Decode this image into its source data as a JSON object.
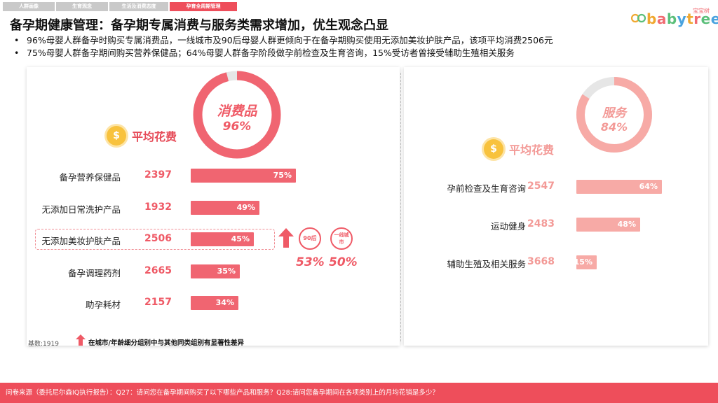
{
  "nav": {
    "tabs": [
      {
        "label": "人群画像",
        "active": false
      },
      {
        "label": "生育观念",
        "active": false
      },
      {
        "label": "生活及消费态度",
        "active": false
      },
      {
        "label": "孕育全周期管理",
        "active": true
      }
    ]
  },
  "logo": {
    "small": "宝宝树",
    "text": "babytree"
  },
  "title": "备孕期健康管理：备孕期专属消费与服务类需求增加，优生观念凸显",
  "bullets": [
    "96%母婴人群备孕时购买专属消费品，一线城市及90后母婴人群更倾向于在备孕期购买使用无添加美妆护肤产品，该项平均消费2506元",
    "75%母婴人群备孕期间购买营养保健品；64%母婴人群备孕阶段做孕前检查及生育咨询，15%受访者曾接受辅助生殖相关服务"
  ],
  "chart_data": [
    {
      "type": "bar",
      "name": "消费品",
      "donut": {
        "label": "消费品",
        "value_label": "96%",
        "value": 96
      },
      "spend_header": "平均花费",
      "categories": [
        "备孕营养保健品",
        "无添加日常洗护产品",
        "无添加美妆护肤产品",
        "备孕调理药剂",
        "助孕耗材"
      ],
      "avg_spend": [
        2397,
        1932,
        2506,
        2665,
        2157
      ],
      "values": [
        75,
        49,
        45,
        35,
        34
      ],
      "value_labels": [
        "75%",
        "49%",
        "45%",
        "35%",
        "34%"
      ],
      "highlight": {
        "category": "无添加美妆护肤产品",
        "groups": [
          "90后",
          "一线城市"
        ],
        "group_values": [
          "53%",
          "50%"
        ]
      },
      "color": "#f06571"
    },
    {
      "type": "bar",
      "name": "服务",
      "donut": {
        "label": "服务",
        "value_label": "84%",
        "value": 84
      },
      "spend_header": "平均花费",
      "categories": [
        "孕前检查及生育咨询",
        "运动健身",
        "辅助生殖及相关服务"
      ],
      "avg_spend": [
        2547,
        2483,
        3668
      ],
      "values": [
        64,
        48,
        15
      ],
      "value_labels": [
        "64%",
        "48%",
        "15%"
      ],
      "color": "#f7aaa6"
    }
  ],
  "coin_symbol": "$",
  "base_label": "基数:1919",
  "legend_note": "在城市/年龄细分组别中与其他同类组别有显著性差异",
  "footer": "问卷来源（委托尼尔森IQ执行报告）：Q27：请问您在备孕期间购买了以下哪些产品和服务？Q28:请问您备孕期间在各项类别上的月均花销是多少？"
}
